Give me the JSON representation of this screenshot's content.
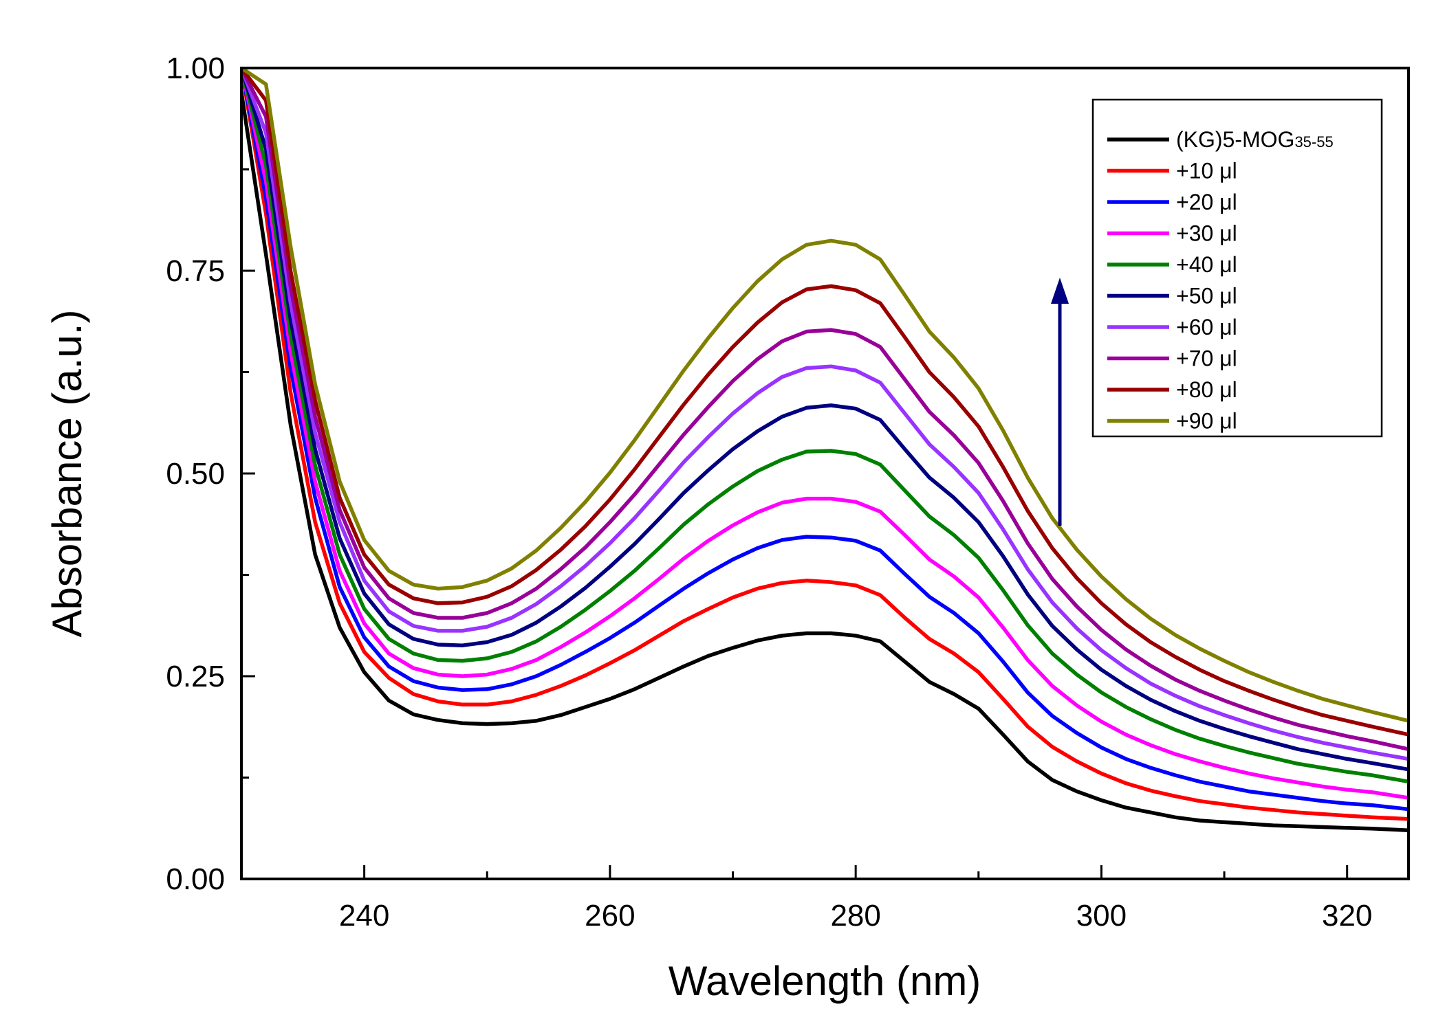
{
  "chart_data": {
    "type": "line",
    "title": "",
    "xlabel": "Wavelength (nm)",
    "ylabel": "Absorbance (a.u.)",
    "xlim": [
      230,
      325
    ],
    "ylim": [
      0.0,
      1.0
    ],
    "xticks": [
      240,
      260,
      280,
      300,
      320
    ],
    "xtick_labels": [
      "240",
      "260",
      "280",
      "300",
      "320"
    ],
    "yticks": [
      0.0,
      0.25,
      0.5,
      0.75,
      1.0
    ],
    "ytick_labels": [
      "0.00",
      "0.25",
      "0.50",
      "0.75",
      "1.00"
    ],
    "grid": false,
    "legend_position": "top-right",
    "annotation": "upward arrow indicating increasing absorbance with added volume",
    "x": [
      230,
      232,
      234,
      236,
      238,
      240,
      242,
      244,
      246,
      248,
      250,
      252,
      254,
      256,
      258,
      260,
      262,
      264,
      266,
      268,
      270,
      272,
      274,
      276,
      278,
      280,
      282,
      284,
      286,
      288,
      290,
      292,
      294,
      296,
      298,
      300,
      302,
      304,
      306,
      308,
      310,
      312,
      314,
      316,
      318,
      320,
      322,
      325
    ],
    "series": [
      {
        "name": "(KG)5-MOG",
        "name_sub": "35-55",
        "color": "#000000",
        "values": [
          0.97,
          0.77,
          0.56,
          0.4,
          0.31,
          0.255,
          0.22,
          0.203,
          0.196,
          0.192,
          0.191,
          0.192,
          0.195,
          0.202,
          0.212,
          0.222,
          0.234,
          0.248,
          0.262,
          0.275,
          0.285,
          0.294,
          0.3,
          0.303,
          0.303,
          0.3,
          0.293,
          0.268,
          0.243,
          0.228,
          0.21,
          0.178,
          0.145,
          0.122,
          0.108,
          0.097,
          0.088,
          0.082,
          0.076,
          0.072,
          0.07,
          0.068,
          0.066,
          0.065,
          0.064,
          0.063,
          0.062,
          0.06
        ]
      },
      {
        "name": "+10 μl",
        "color": "#ff0000",
        "values": [
          1.0,
          0.82,
          0.6,
          0.44,
          0.34,
          0.28,
          0.248,
          0.228,
          0.219,
          0.215,
          0.215,
          0.219,
          0.227,
          0.238,
          0.251,
          0.266,
          0.282,
          0.3,
          0.318,
          0.333,
          0.347,
          0.358,
          0.365,
          0.368,
          0.366,
          0.362,
          0.35,
          0.322,
          0.296,
          0.278,
          0.255,
          0.222,
          0.188,
          0.163,
          0.145,
          0.13,
          0.118,
          0.109,
          0.102,
          0.096,
          0.092,
          0.088,
          0.085,
          0.082,
          0.08,
          0.078,
          0.076,
          0.074
        ]
      },
      {
        "name": "+20 μl",
        "color": "#0000ff",
        "values": [
          1.0,
          0.84,
          0.63,
          0.47,
          0.36,
          0.298,
          0.262,
          0.244,
          0.236,
          0.233,
          0.234,
          0.24,
          0.25,
          0.264,
          0.28,
          0.297,
          0.316,
          0.337,
          0.358,
          0.377,
          0.394,
          0.408,
          0.418,
          0.422,
          0.421,
          0.417,
          0.405,
          0.376,
          0.348,
          0.328,
          0.303,
          0.268,
          0.23,
          0.201,
          0.18,
          0.162,
          0.148,
          0.137,
          0.128,
          0.12,
          0.114,
          0.108,
          0.104,
          0.1,
          0.096,
          0.093,
          0.091,
          0.086
        ]
      },
      {
        "name": "+30 μl",
        "color": "#ff00ff",
        "values": [
          1.0,
          0.86,
          0.65,
          0.49,
          0.38,
          0.315,
          0.278,
          0.26,
          0.252,
          0.25,
          0.252,
          0.259,
          0.27,
          0.286,
          0.304,
          0.324,
          0.346,
          0.37,
          0.395,
          0.417,
          0.436,
          0.452,
          0.464,
          0.469,
          0.469,
          0.465,
          0.453,
          0.424,
          0.394,
          0.373,
          0.347,
          0.31,
          0.27,
          0.238,
          0.214,
          0.194,
          0.178,
          0.165,
          0.154,
          0.145,
          0.137,
          0.13,
          0.124,
          0.119,
          0.114,
          0.11,
          0.107,
          0.1
        ]
      },
      {
        "name": "+40 μl",
        "color": "#008000",
        "values": [
          1.0,
          0.88,
          0.67,
          0.51,
          0.4,
          0.333,
          0.296,
          0.278,
          0.27,
          0.269,
          0.272,
          0.28,
          0.293,
          0.311,
          0.332,
          0.355,
          0.38,
          0.408,
          0.437,
          0.462,
          0.484,
          0.503,
          0.517,
          0.527,
          0.528,
          0.524,
          0.511,
          0.479,
          0.447,
          0.424,
          0.396,
          0.356,
          0.313,
          0.278,
          0.252,
          0.23,
          0.212,
          0.197,
          0.184,
          0.173,
          0.164,
          0.156,
          0.149,
          0.142,
          0.137,
          0.132,
          0.128,
          0.12
        ]
      },
      {
        "name": "+50 μl",
        "color": "#000080",
        "values": [
          1.0,
          0.9,
          0.69,
          0.53,
          0.42,
          0.352,
          0.314,
          0.296,
          0.289,
          0.288,
          0.292,
          0.301,
          0.316,
          0.336,
          0.359,
          0.385,
          0.413,
          0.444,
          0.476,
          0.504,
          0.53,
          0.552,
          0.57,
          0.581,
          0.584,
          0.58,
          0.566,
          0.53,
          0.495,
          0.47,
          0.44,
          0.398,
          0.351,
          0.312,
          0.283,
          0.258,
          0.238,
          0.221,
          0.207,
          0.195,
          0.185,
          0.176,
          0.168,
          0.16,
          0.154,
          0.148,
          0.143,
          0.135
        ]
      },
      {
        "name": "+60 μl",
        "color": "#9933ff",
        "values": [
          1.0,
          0.92,
          0.71,
          0.55,
          0.44,
          0.368,
          0.33,
          0.312,
          0.306,
          0.306,
          0.311,
          0.322,
          0.339,
          0.361,
          0.386,
          0.414,
          0.445,
          0.479,
          0.514,
          0.545,
          0.574,
          0.599,
          0.619,
          0.63,
          0.632,
          0.627,
          0.612,
          0.574,
          0.536,
          0.508,
          0.476,
          0.431,
          0.382,
          0.341,
          0.309,
          0.282,
          0.26,
          0.241,
          0.226,
          0.213,
          0.202,
          0.192,
          0.183,
          0.175,
          0.168,
          0.162,
          0.156,
          0.148
        ]
      },
      {
        "name": "+70 μl",
        "color": "#990099",
        "values": [
          1.0,
          0.94,
          0.73,
          0.57,
          0.455,
          0.384,
          0.346,
          0.328,
          0.322,
          0.322,
          0.328,
          0.34,
          0.358,
          0.382,
          0.409,
          0.44,
          0.474,
          0.511,
          0.548,
          0.582,
          0.614,
          0.641,
          0.663,
          0.675,
          0.677,
          0.672,
          0.656,
          0.616,
          0.576,
          0.547,
          0.513,
          0.466,
          0.414,
          0.37,
          0.336,
          0.307,
          0.283,
          0.263,
          0.246,
          0.232,
          0.22,
          0.209,
          0.199,
          0.19,
          0.183,
          0.176,
          0.17,
          0.16
        ]
      },
      {
        "name": "+80 μl",
        "color": "#990000",
        "values": [
          1.0,
          0.96,
          0.75,
          0.59,
          0.47,
          0.4,
          0.363,
          0.346,
          0.34,
          0.341,
          0.348,
          0.361,
          0.381,
          0.406,
          0.435,
          0.468,
          0.505,
          0.545,
          0.585,
          0.622,
          0.656,
          0.686,
          0.711,
          0.727,
          0.731,
          0.726,
          0.71,
          0.668,
          0.625,
          0.594,
          0.558,
          0.508,
          0.454,
          0.408,
          0.371,
          0.34,
          0.314,
          0.292,
          0.274,
          0.258,
          0.244,
          0.232,
          0.221,
          0.211,
          0.202,
          0.195,
          0.188,
          0.178
        ]
      },
      {
        "name": "+90 μl",
        "color": "#808000",
        "values": [
          1.0,
          0.98,
          0.78,
          0.61,
          0.49,
          0.418,
          0.38,
          0.363,
          0.358,
          0.36,
          0.368,
          0.383,
          0.405,
          0.433,
          0.465,
          0.501,
          0.541,
          0.584,
          0.627,
          0.667,
          0.704,
          0.737,
          0.764,
          0.782,
          0.787,
          0.782,
          0.764,
          0.72,
          0.675,
          0.643,
          0.605,
          0.553,
          0.495,
          0.445,
          0.406,
          0.373,
          0.345,
          0.321,
          0.301,
          0.284,
          0.269,
          0.255,
          0.243,
          0.232,
          0.222,
          0.214,
          0.206,
          0.195
        ]
      }
    ]
  }
}
